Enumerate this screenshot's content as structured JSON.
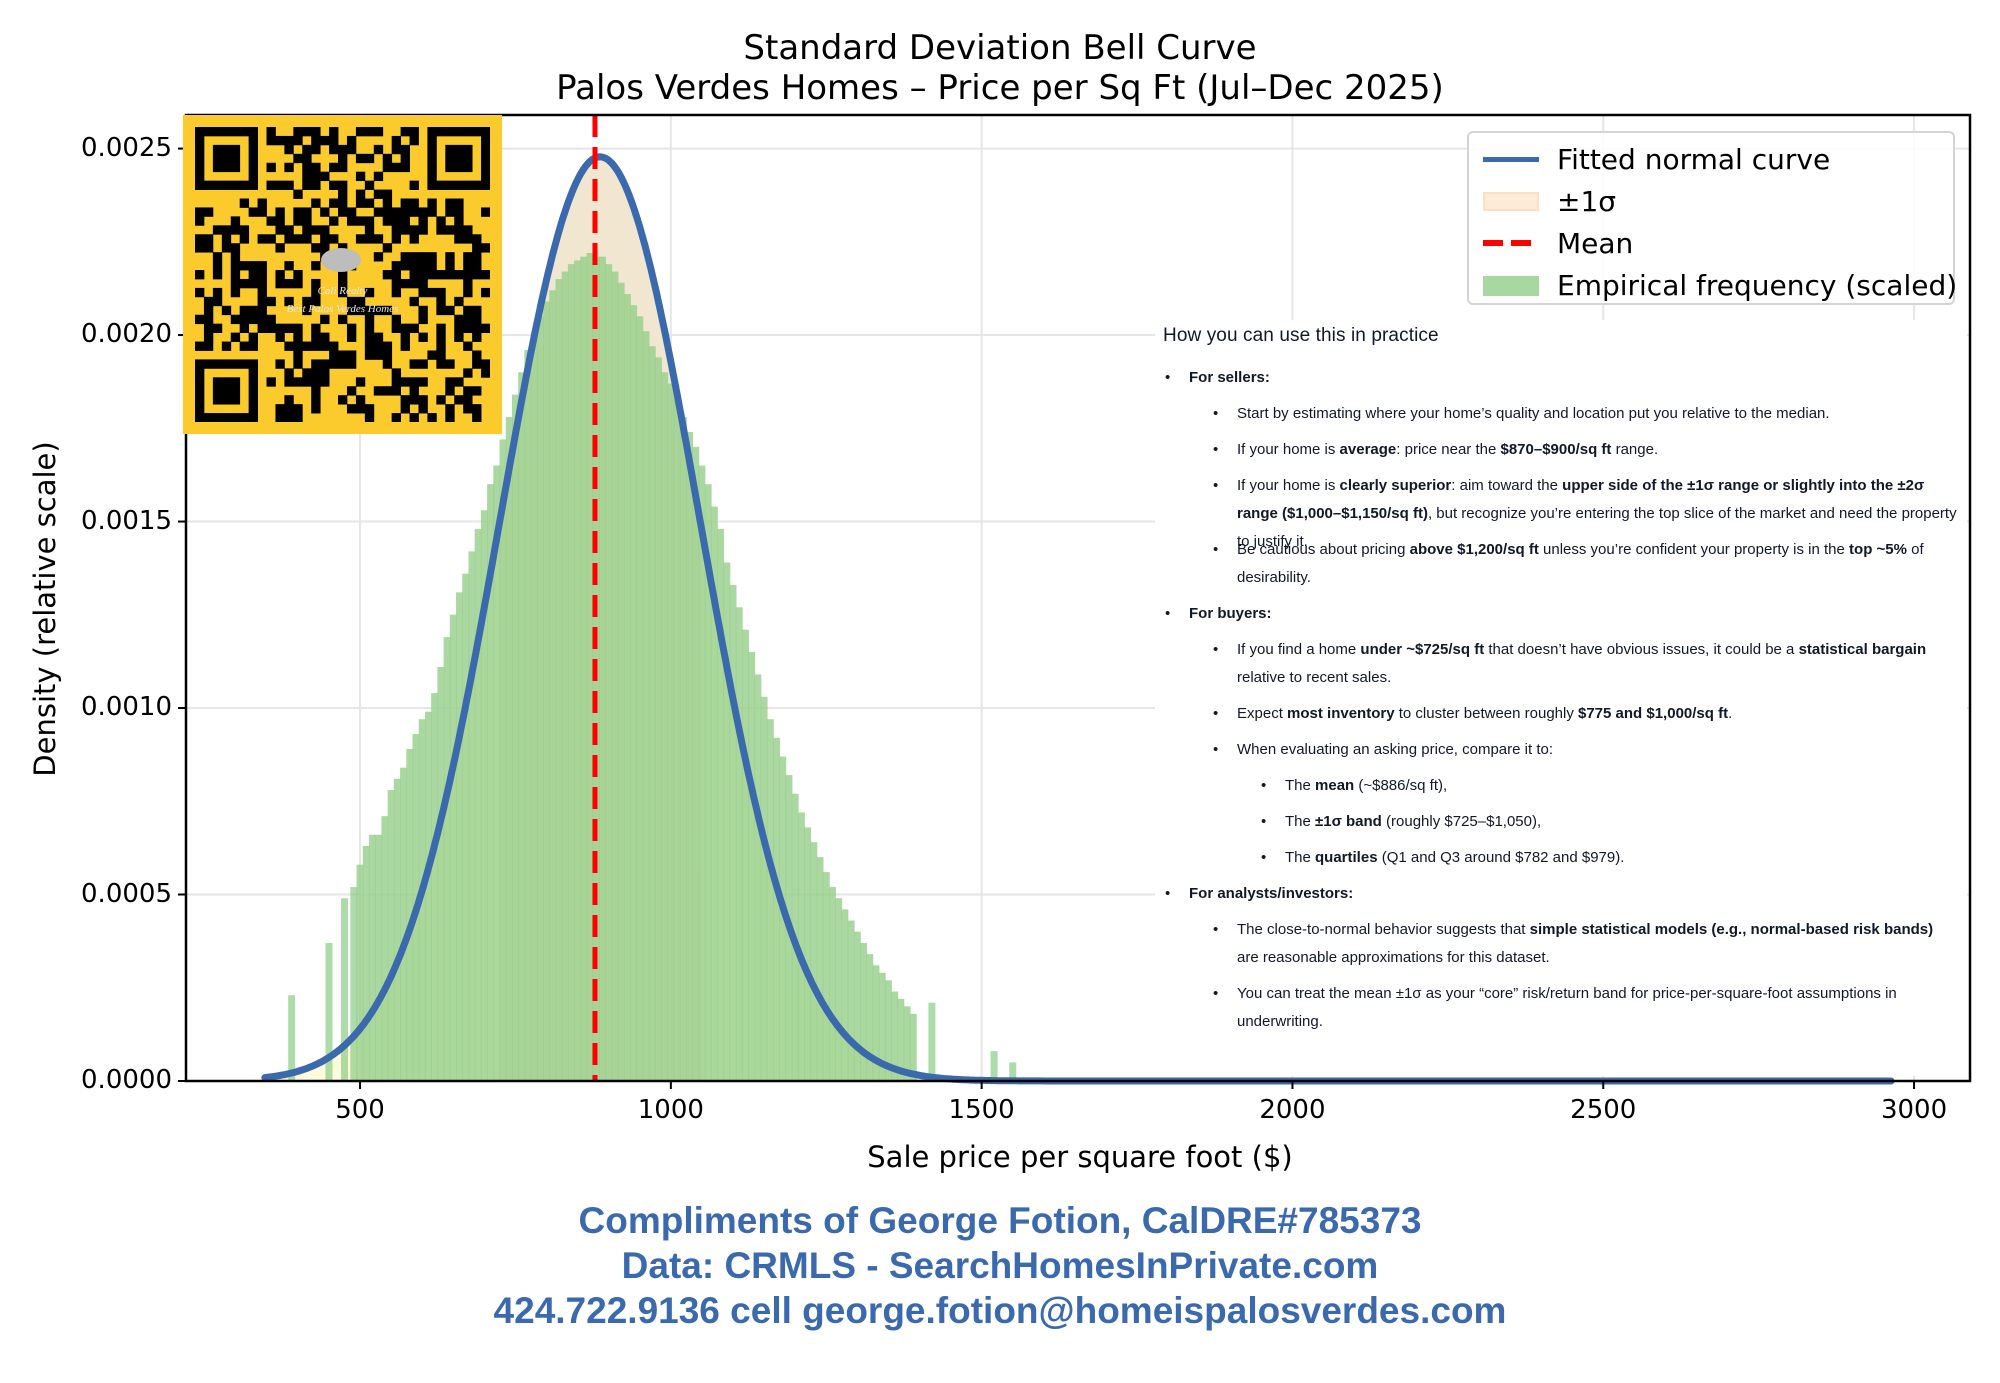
{
  "title": {
    "line1": "Standard Deviation Bell Curve",
    "line2": "Palos Verdes Homes – Price per Sq Ft (Jul–Dec 2025)"
  },
  "qr_badge": {
    "background": "#fbca2c",
    "line1": "Cali Realty",
    "line2": "Best Palos Verdes Homes"
  },
  "legend": {
    "items": [
      {
        "label": "Fitted normal curve",
        "kind": "line",
        "color": "#3a6aad"
      },
      {
        "label": "±1σ",
        "kind": "patch",
        "color": "#fde8d2"
      },
      {
        "label": "Mean",
        "kind": "dashed",
        "color": "#ff0000"
      },
      {
        "label": "Empirical frequency (scaled)",
        "kind": "patch",
        "color": "#a6d8a0"
      }
    ]
  },
  "notes": {
    "heading": "How you can use this in practice",
    "sections": [
      {
        "label": "For sellers:",
        "items": [
          "Start by estimating where your home’s quality and location put you relative to the median.",
          "If your home is <b>average</b>: price near the <b>$870–$900/sq ft</b> range.",
          "If your home is <b>clearly superior</b>: aim toward the <b>upper side of the ±1σ range or slightly into the ±2σ range ($1,000–$1,150/sq ft)</b>, but recognize you’re entering the top slice of the market and need the property to justify it.",
          "Be cautious about pricing <b>above $1,200/sq ft</b> unless you’re confident your property is in the <b>top ~5%</b> of desirability."
        ]
      },
      {
        "label": "For buyers:",
        "items": [
          "If you find a home <b>under ~$725/sq ft</b> that doesn’t have obvious issues, it could be a <b>statistical bargain</b> relative to recent sales.",
          "Expect <b>most inventory</b> to cluster between roughly <b>$775 and $1,000/sq ft</b>.",
          "When evaluating an asking price, compare it to:"
        ],
        "subitems": [
          "The <b>mean</b> (~$886/sq ft),",
          "The <b>±1σ band</b> (roughly $725–$1,050),",
          "The <b>quartiles</b> (Q1 and Q3 around $782 and $979)."
        ]
      },
      {
        "label": "For analysts/investors:",
        "items": [
          "The close-to-normal behavior suggests that <b>simple statistical models (e.g., normal-based risk bands)</b> are reasonable approximations for this dataset.",
          "You can treat the mean ±1σ as your “core” risk/return band for price-per-square-foot assumptions in underwriting."
        ]
      }
    ]
  },
  "footer": {
    "line1": "Compliments of George Fotion, CalDRE#785373",
    "line2": "Data: CRMLS - SearchHomesInPrivate.com",
    "line3": "424.722.9136 cell george.fotion@homeispalosverdes.com",
    "color": "#3a6aad"
  },
  "chart_data": {
    "type": "bar",
    "title": "Standard Deviation Bell Curve — Palos Verdes Homes – Price per Sq Ft (Jul–Dec 2025)",
    "xlabel": "Sale price per square foot ($)",
    "ylabel": "Density (relative scale)",
    "xlim": [
      220,
      3090
    ],
    "ylim": [
      0,
      0.00259
    ],
    "xticks": [
      500,
      1000,
      1500,
      2000,
      2500,
      3000
    ],
    "yticks": [
      0.0,
      0.0005,
      0.001,
      0.0015,
      0.002,
      0.0025
    ],
    "ytick_labels": [
      "0.0000",
      "0.0005",
      "0.0010",
      "0.0015",
      "0.0020",
      "0.0025"
    ],
    "grid": true,
    "legend_position": "upper right",
    "mean": 886,
    "sigma": 161,
    "sigma_band": [
      725,
      1050
    ],
    "quartiles": {
      "Q1": 782,
      "Q3": 979
    },
    "fitted_curve": {
      "name": "Fitted normal curve",
      "x_start": 347,
      "x_end": 2965,
      "peak_density": 0.00247
    },
    "series": [
      {
        "name": "Empirical frequency (scaled)",
        "x": [
          390,
          450,
          475,
          490,
          500,
          510,
          520,
          530,
          540,
          550,
          560,
          570,
          580,
          590,
          600,
          610,
          620,
          630,
          640,
          650,
          660,
          670,
          680,
          690,
          700,
          710,
          720,
          730,
          740,
          750,
          760,
          770,
          780,
          790,
          800,
          810,
          820,
          830,
          840,
          850,
          860,
          870,
          880,
          890,
          900,
          910,
          920,
          930,
          940,
          950,
          960,
          970,
          980,
          990,
          1000,
          1010,
          1020,
          1030,
          1040,
          1050,
          1060,
          1070,
          1080,
          1090,
          1100,
          1110,
          1120,
          1130,
          1140,
          1150,
          1160,
          1170,
          1180,
          1190,
          1200,
          1210,
          1220,
          1230,
          1240,
          1250,
          1260,
          1270,
          1280,
          1290,
          1300,
          1310,
          1320,
          1330,
          1340,
          1350,
          1360,
          1370,
          1380,
          1390,
          1420,
          1520,
          1550
        ],
        "values": [
          0.00023,
          0.00037,
          0.00049,
          0.00052,
          0.00058,
          0.00063,
          0.00066,
          0.00066,
          0.00071,
          0.00078,
          0.00081,
          0.00084,
          0.00089,
          0.00093,
          0.00097,
          0.00099,
          0.00104,
          0.00111,
          0.00119,
          0.00125,
          0.00131,
          0.00136,
          0.00142,
          0.00148,
          0.00153,
          0.0016,
          0.00165,
          0.00172,
          0.00178,
          0.00184,
          0.0019,
          0.00196,
          0.002,
          0.00205,
          0.00209,
          0.00212,
          0.00215,
          0.00217,
          0.00219,
          0.0022,
          0.00221,
          0.00222,
          0.00221,
          0.00221,
          0.00219,
          0.00217,
          0.00214,
          0.00211,
          0.00208,
          0.00205,
          0.00201,
          0.00197,
          0.00194,
          0.0019,
          0.00187,
          0.00183,
          0.00178,
          0.00174,
          0.0017,
          0.00165,
          0.0016,
          0.00154,
          0.00148,
          0.00139,
          0.00133,
          0.00127,
          0.00121,
          0.00115,
          0.00109,
          0.00103,
          0.00097,
          0.00092,
          0.00087,
          0.00082,
          0.00077,
          0.00072,
          0.00068,
          0.00064,
          0.0006,
          0.00056,
          0.00052,
          0.00049,
          0.00046,
          0.00043,
          0.0004,
          0.00037,
          0.00034,
          0.00031,
          0.00029,
          0.00027,
          0.00024,
          0.00022,
          0.0002,
          0.00018,
          0.00021,
          8e-05,
          5e-05
        ]
      }
    ]
  }
}
